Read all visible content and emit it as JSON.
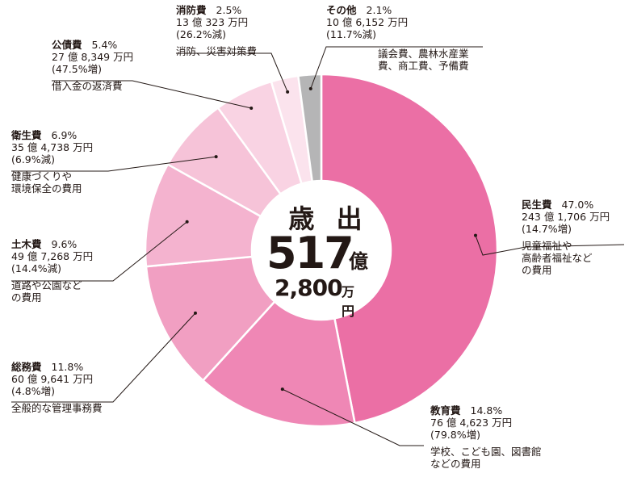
{
  "chart_data": {
    "type": "pie",
    "center": {
      "title": "歳 出",
      "oku_value": "517",
      "oku_unit": "億",
      "man_value": "2,800",
      "man_unit": "万円"
    },
    "slices": [
      {
        "name": "民生費",
        "value": 47.0,
        "pct_label": "47.0%",
        "amount": "243 億 1,706 万円",
        "change": "(14.7%増)",
        "desc": "児童福祉や\n高齢者福祉など\nの費用",
        "color": "#eb6fa5"
      },
      {
        "name": "教育費",
        "value": 14.8,
        "pct_label": "14.8%",
        "amount": "76 億 4,623 万円",
        "change": "(79.8%増)",
        "desc": "学校、こども園、図書館\nなどの費用",
        "color": "#ef87b5"
      },
      {
        "name": "総務費",
        "value": 11.8,
        "pct_label": "11.8%",
        "amount": "60 億 9,641 万円",
        "change": "(4.8%増)",
        "desc": "全般的な管理事務費",
        "color": "#f19fc2"
      },
      {
        "name": "土木費",
        "value": 9.6,
        "pct_label": "9.6%",
        "amount": "49 億 7,268 万円",
        "change": "(14.4%減)",
        "desc": "道路や公園など\nの費用",
        "color": "#f4b3cf"
      },
      {
        "name": "衛生費",
        "value": 6.9,
        "pct_label": "6.9%",
        "amount": "35 億 4,738 万円",
        "change": "(6.9%減)",
        "desc": "健康づくりや\n環境保全の費用",
        "color": "#f6c3d8"
      },
      {
        "name": "公債費",
        "value": 5.4,
        "pct_label": "5.4%",
        "amount": "27 億 8,349 万円",
        "change": "(47.5%増)",
        "desc": "借入金の返済費",
        "color": "#f9d3e3"
      },
      {
        "name": "消防費",
        "value": 2.5,
        "pct_label": "2.5%",
        "amount": "13 億 323 万円",
        "change": "(26.2%減)",
        "desc": "消防、災害対策費",
        "color": "#fbe3ed"
      },
      {
        "name": "その他",
        "value": 2.1,
        "pct_label": "2.1%",
        "amount": "10 億 6,152 万円",
        "change": "(11.7%減)",
        "desc": "議会費、農林水産業\n費、商工費、予備費",
        "color": "#b5b5b6"
      }
    ]
  }
}
